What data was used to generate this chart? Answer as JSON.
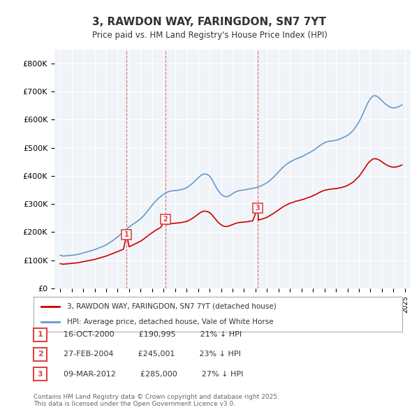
{
  "title": "3, RAWDON WAY, FARINGDON, SN7 7YT",
  "subtitle": "Price paid vs. HM Land Registry's House Price Index (HPI)",
  "legend_house": "3, RAWDON WAY, FARINGDON, SN7 7YT (detached house)",
  "legend_hpi": "HPI: Average price, detached house, Vale of White Horse",
  "footer": "Contains HM Land Registry data © Crown copyright and database right 2025.\nThis data is licensed under the Open Government Licence v3.0.",
  "transactions": [
    {
      "num": 1,
      "date": "16-OCT-2000",
      "price": 190995,
      "pct": "21%",
      "x": 2000.79
    },
    {
      "num": 2,
      "date": "27-FEB-2004",
      "price": 245001,
      "pct": "23%",
      "x": 2004.15
    },
    {
      "num": 3,
      "date": "09-MAR-2012",
      "price": 285000,
      "pct": "27%",
      "x": 2012.19
    }
  ],
  "house_color": "#cc0000",
  "hpi_color": "#6699cc",
  "vline_color": "#dd4444",
  "background_color": "#f0f4f8",
  "plot_bg": "#f0f4f8",
  "ylim": [
    0,
    850000
  ],
  "xlim": [
    1994.5,
    2025.5
  ],
  "yticks": [
    0,
    100000,
    200000,
    300000,
    400000,
    500000,
    600000,
    700000,
    800000
  ],
  "ytick_labels": [
    "£0",
    "£100K",
    "£200K",
    "£300K",
    "£400K",
    "£500K",
    "£600K",
    "£700K",
    "£800K"
  ],
  "xticks": [
    1995,
    1996,
    1997,
    1998,
    1999,
    2000,
    2001,
    2002,
    2003,
    2004,
    2005,
    2006,
    2007,
    2008,
    2009,
    2010,
    2011,
    2012,
    2013,
    2014,
    2015,
    2016,
    2017,
    2018,
    2019,
    2020,
    2021,
    2022,
    2023,
    2024,
    2025
  ],
  "hpi_x": [
    1995.0,
    1995.25,
    1995.5,
    1995.75,
    1996.0,
    1996.25,
    1996.5,
    1996.75,
    1997.0,
    1997.25,
    1997.5,
    1997.75,
    1998.0,
    1998.25,
    1998.5,
    1998.75,
    1999.0,
    1999.25,
    1999.5,
    1999.75,
    2000.0,
    2000.25,
    2000.5,
    2000.75,
    2001.0,
    2001.25,
    2001.5,
    2001.75,
    2002.0,
    2002.25,
    2002.5,
    2002.75,
    2003.0,
    2003.25,
    2003.5,
    2003.75,
    2004.0,
    2004.25,
    2004.5,
    2004.75,
    2005.0,
    2005.25,
    2005.5,
    2005.75,
    2006.0,
    2006.25,
    2006.5,
    2006.75,
    2007.0,
    2007.25,
    2007.5,
    2007.75,
    2008.0,
    2008.25,
    2008.5,
    2008.75,
    2009.0,
    2009.25,
    2009.5,
    2009.75,
    2010.0,
    2010.25,
    2010.5,
    2010.75,
    2011.0,
    2011.25,
    2011.5,
    2011.75,
    2012.0,
    2012.25,
    2012.5,
    2012.75,
    2013.0,
    2013.25,
    2013.5,
    2013.75,
    2014.0,
    2014.25,
    2014.5,
    2014.75,
    2015.0,
    2015.25,
    2015.5,
    2015.75,
    2016.0,
    2016.25,
    2016.5,
    2016.75,
    2017.0,
    2017.25,
    2017.5,
    2017.75,
    2018.0,
    2018.25,
    2018.5,
    2018.75,
    2019.0,
    2019.25,
    2019.5,
    2019.75,
    2020.0,
    2020.25,
    2020.5,
    2020.75,
    2021.0,
    2021.25,
    2021.5,
    2021.75,
    2022.0,
    2022.25,
    2022.5,
    2022.75,
    2023.0,
    2023.25,
    2023.5,
    2023.75,
    2024.0,
    2024.25,
    2024.5,
    2024.75
  ],
  "hpi_y": [
    118000,
    115000,
    116000,
    117000,
    118000,
    119000,
    121000,
    123000,
    126000,
    129000,
    132000,
    135000,
    138000,
    142000,
    146000,
    150000,
    155000,
    161000,
    168000,
    175000,
    183000,
    192000,
    201000,
    210000,
    218000,
    226000,
    233000,
    240000,
    248000,
    258000,
    270000,
    283000,
    296000,
    308000,
    319000,
    327000,
    335000,
    341000,
    345000,
    347000,
    348000,
    349000,
    351000,
    354000,
    358000,
    365000,
    373000,
    383000,
    393000,
    402000,
    407000,
    406000,
    400000,
    385000,
    365000,
    348000,
    335000,
    328000,
    326000,
    330000,
    337000,
    343000,
    347000,
    349000,
    350000,
    352000,
    354000,
    356000,
    358000,
    361000,
    365000,
    370000,
    376000,
    384000,
    393000,
    403000,
    414000,
    425000,
    435000,
    443000,
    450000,
    455000,
    460000,
    464000,
    468000,
    473000,
    479000,
    484000,
    490000,
    497000,
    505000,
    512000,
    518000,
    522000,
    524000,
    525000,
    527000,
    530000,
    534000,
    539000,
    544000,
    552000,
    562000,
    576000,
    592000,
    612000,
    635000,
    658000,
    675000,
    685000,
    685000,
    678000,
    668000,
    658000,
    650000,
    644000,
    642000,
    643000,
    647000,
    653000
  ],
  "house_x": [
    1995.0,
    1995.25,
    1995.5,
    1995.75,
    1996.0,
    1996.25,
    1996.5,
    1996.75,
    1997.0,
    1997.25,
    1997.5,
    1997.75,
    1998.0,
    1998.25,
    1998.5,
    1998.75,
    1999.0,
    1999.25,
    1999.5,
    1999.75,
    2000.0,
    2000.25,
    2000.5,
    2000.79,
    2001.0,
    2001.25,
    2001.5,
    2001.75,
    2002.0,
    2002.25,
    2002.5,
    2002.75,
    2003.0,
    2003.25,
    2003.5,
    2003.75,
    2004.15,
    2004.25,
    2004.5,
    2004.75,
    2005.0,
    2005.25,
    2005.5,
    2005.75,
    2006.0,
    2006.25,
    2006.5,
    2006.75,
    2007.0,
    2007.25,
    2007.5,
    2007.75,
    2008.0,
    2008.25,
    2008.5,
    2008.75,
    2009.0,
    2009.25,
    2009.5,
    2009.75,
    2010.0,
    2010.25,
    2010.5,
    2010.75,
    2011.0,
    2011.25,
    2011.5,
    2011.75,
    2012.19,
    2012.25,
    2012.5,
    2012.75,
    2013.0,
    2013.25,
    2013.5,
    2013.75,
    2014.0,
    2014.25,
    2014.5,
    2014.75,
    2015.0,
    2015.25,
    2015.5,
    2015.75,
    2016.0,
    2016.25,
    2016.5,
    2016.75,
    2017.0,
    2017.25,
    2017.5,
    2017.75,
    2018.0,
    2018.25,
    2018.5,
    2018.75,
    2019.0,
    2019.25,
    2019.5,
    2019.75,
    2020.0,
    2020.25,
    2020.5,
    2020.75,
    2021.0,
    2021.25,
    2021.5,
    2021.75,
    2022.0,
    2022.25,
    2022.5,
    2022.75,
    2023.0,
    2023.25,
    2023.5,
    2023.75,
    2024.0,
    2024.25,
    2024.5,
    2024.75
  ],
  "house_y": [
    88000,
    86000,
    87000,
    88000,
    89000,
    90000,
    91000,
    93000,
    95000,
    97000,
    99000,
    101000,
    103000,
    106000,
    109000,
    112000,
    115000,
    119000,
    123000,
    127000,
    131000,
    135000,
    139000,
    190995,
    148000,
    153000,
    158000,
    163000,
    168000,
    175000,
    183000,
    191000,
    198000,
    205000,
    211000,
    217000,
    245001,
    227000,
    229000,
    231000,
    232000,
    233000,
    234000,
    236000,
    238000,
    243000,
    249000,
    256000,
    264000,
    271000,
    275000,
    274000,
    270000,
    260000,
    247000,
    235000,
    226000,
    221000,
    220000,
    223000,
    227000,
    231000,
    234000,
    235000,
    236000,
    237000,
    239000,
    240000,
    285000,
    243000,
    246000,
    249000,
    253000,
    259000,
    265000,
    272000,
    279000,
    286000,
    293000,
    298000,
    303000,
    306000,
    310000,
    312000,
    315000,
    318000,
    322000,
    325000,
    330000,
    334000,
    340000,
    345000,
    349000,
    351000,
    353000,
    354000,
    355000,
    357000,
    359000,
    362000,
    366000,
    372000,
    378000,
    388000,
    398000,
    412000,
    427000,
    443000,
    454000,
    461000,
    461000,
    457000,
    450000,
    443000,
    437000,
    433000,
    431000,
    432000,
    435000,
    439000
  ]
}
